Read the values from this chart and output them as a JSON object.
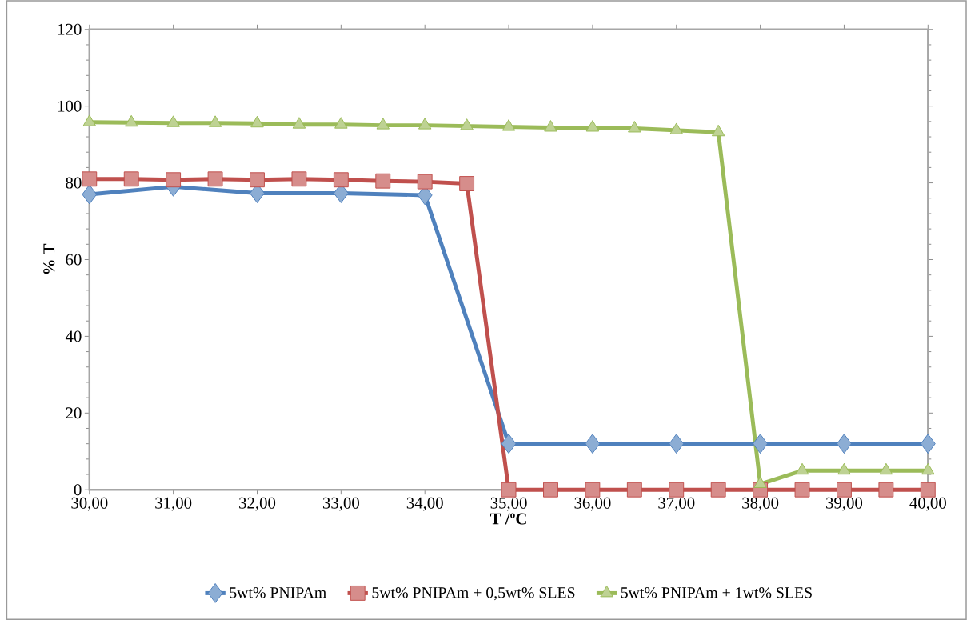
{
  "chart_data": {
    "type": "line",
    "xlabel": "T /ºC",
    "ylabel": "% T",
    "xlim": [
      30,
      40
    ],
    "ylim": [
      0,
      120
    ],
    "xticks": [
      {
        "value": 30,
        "label": "30,00"
      },
      {
        "value": 31,
        "label": "31,00"
      },
      {
        "value": 32,
        "label": "32,00"
      },
      {
        "value": 33,
        "label": "33,00"
      },
      {
        "value": 34,
        "label": "34,00"
      },
      {
        "value": 35,
        "label": "35,00"
      },
      {
        "value": 36,
        "label": "36,00"
      },
      {
        "value": 37,
        "label": "37,00"
      },
      {
        "value": 38,
        "label": "38,00"
      },
      {
        "value": 39,
        "label": "39,00"
      },
      {
        "value": 40,
        "label": "40,00"
      }
    ],
    "yticks": [
      0,
      20,
      40,
      60,
      80,
      100,
      120
    ],
    "grid": false,
    "legend": "bottom",
    "line_style": "solid",
    "series": [
      {
        "name": "5wt% PNIPAm",
        "color": "#4f81bd",
        "marker": "diamond",
        "x": [
          30,
          31,
          32,
          33,
          34,
          35,
          36,
          37,
          38,
          39,
          40
        ],
        "values": [
          77,
          79,
          77.3,
          77.3,
          76.8,
          12,
          12,
          12,
          12,
          12,
          12
        ]
      },
      {
        "name": "5wt% PNIPAm + 0,5wt% SLES",
        "color": "#c0504d",
        "marker": "square",
        "x": [
          30,
          30.5,
          31,
          31.5,
          32,
          32.5,
          33,
          33.5,
          34,
          34.5,
          35,
          35.5,
          36,
          36.5,
          37,
          37.5,
          38,
          38.5,
          39,
          39.5,
          40
        ],
        "values": [
          81,
          81,
          80.8,
          81,
          80.8,
          81,
          80.8,
          80.5,
          80.3,
          79.8,
          0,
          0,
          0,
          0,
          0,
          0,
          0,
          0,
          0,
          0,
          0
        ]
      },
      {
        "name": "5wt% PNIPAm + 1wt% SLES",
        "color": "#9bbb59",
        "marker": "triangle",
        "x": [
          30,
          30.5,
          31,
          31.5,
          32,
          32.5,
          33,
          33.5,
          34,
          34.5,
          35,
          35.5,
          36,
          36.5,
          37,
          37.5,
          38,
          38.5,
          39,
          39.5,
          40
        ],
        "values": [
          95.8,
          95.7,
          95.6,
          95.6,
          95.5,
          95.2,
          95.2,
          95,
          95,
          94.8,
          94.6,
          94.4,
          94.4,
          94.2,
          93.7,
          93.2,
          1.5,
          5,
          5,
          5,
          5
        ]
      }
    ]
  }
}
